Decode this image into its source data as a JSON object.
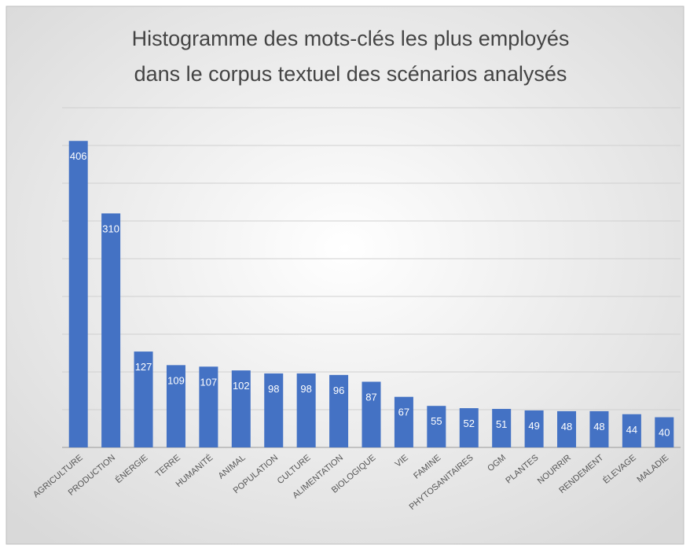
{
  "chart_data": {
    "type": "bar",
    "title": [
      "Histogramme des mots-clés les plus employés",
      "dans le corpus textuel des scénarios analysés"
    ],
    "categories": [
      "AGRICULTURE",
      "PRODUCTION",
      "ÉNERGIE",
      "TERRE",
      "HUMANITÉ",
      "ANIMAL",
      "POPULATION",
      "CULTURE",
      "ALIMENTATION",
      "BIOLOGIQUE",
      "VIE",
      "FAMINE",
      "PHYTOSANITAIRES",
      "OGM",
      "PLANTES",
      "NOURRIR",
      "RENDEMENT",
      "ÉLEVAGE",
      "MALADIE"
    ],
    "values": [
      406,
      310,
      127,
      109,
      107,
      102,
      98,
      98,
      96,
      87,
      67,
      55,
      52,
      51,
      49,
      48,
      48,
      44,
      40
    ],
    "color": "#4472c4",
    "ylim": [
      0,
      450
    ],
    "yticks": [
      0,
      50,
      100,
      150,
      200,
      250,
      300,
      350,
      400,
      450
    ],
    "grid": true
  }
}
